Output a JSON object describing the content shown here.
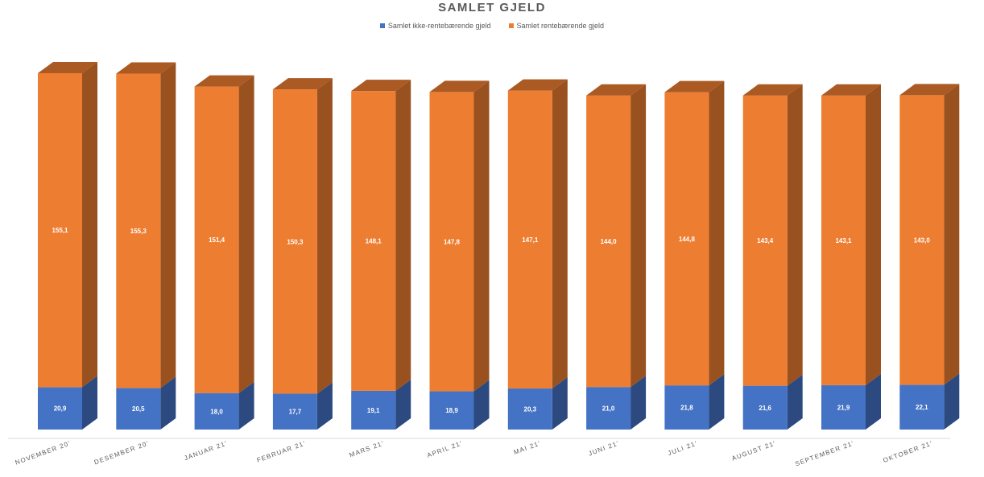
{
  "chart_data": {
    "type": "bar",
    "stacked": true,
    "title": "SAMLET GJELD",
    "categories": [
      "NOVEMBER 20'",
      "DESEMBER 20'",
      "JANUAR 21'",
      "FEBRUAR 21'",
      "MARS 21'",
      "APRIL 21'",
      "MAI 21'",
      "JUNI 21'",
      "JULI 21'",
      "AUGUST 21'",
      "SEPTEMBER 21'",
      "OKTOBER 21'"
    ],
    "series": [
      {
        "name": "Samlet ikke-rentebærende gjeld",
        "color": "#4472C4",
        "values": [
          20.9,
          20.5,
          18.0,
          17.7,
          19.1,
          18.9,
          20.3,
          21.0,
          21.8,
          21.6,
          21.9,
          22.1
        ],
        "labels": [
          "20,9",
          "20,5",
          "18,0",
          "17,7",
          "19,1",
          "18,9",
          "20,3",
          "21,0",
          "21,8",
          "21,6",
          "21,9",
          "22,1"
        ]
      },
      {
        "name": "Samlet rentebærende gjeld",
        "color": "#ED7D31",
        "values": [
          155.1,
          155.3,
          151.4,
          150.3,
          148.1,
          147.8,
          147.1,
          144.0,
          144.8,
          143.4,
          143.1,
          143.0
        ],
        "labels": [
          "155,1",
          "155,3",
          "151,4",
          "150,3",
          "148,1",
          "147,8",
          "147,1",
          "144,0",
          "144,8",
          "143,4",
          "143,1",
          "143,0"
        ]
      }
    ],
    "legend_position": "top",
    "grid": false,
    "ylim": [
      0,
      176
    ]
  }
}
